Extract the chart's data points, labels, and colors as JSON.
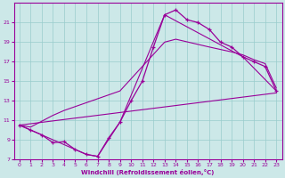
{
  "xlabel": "Windchill (Refroidissement éolien,°C)",
  "background_color": "#cce8e8",
  "grid_color": "#99cccc",
  "line_color": "#990099",
  "xlim": [
    -0.5,
    23.5
  ],
  "ylim": [
    7,
    23
  ],
  "yticks": [
    7,
    9,
    11,
    13,
    15,
    17,
    19,
    21
  ],
  "xticks": [
    0,
    1,
    2,
    3,
    4,
    5,
    6,
    7,
    8,
    9,
    10,
    11,
    12,
    13,
    14,
    15,
    16,
    17,
    18,
    19,
    20,
    21,
    22,
    23
  ],
  "line1_x": [
    0,
    1,
    2,
    3,
    4,
    5,
    6,
    7,
    8,
    9,
    10,
    11,
    12,
    13,
    14,
    15,
    16,
    17,
    18,
    19,
    20,
    21,
    22,
    23
  ],
  "line1_y": [
    10.5,
    10.0,
    9.5,
    8.7,
    8.8,
    8.0,
    7.5,
    7.3,
    9.2,
    10.8,
    13.0,
    15.0,
    18.5,
    21.8,
    22.3,
    21.3,
    21.0,
    20.3,
    19.0,
    18.5,
    17.5,
    17.0,
    16.5,
    14.0
  ],
  "line2_x": [
    0,
    1,
    3,
    4,
    5,
    6,
    7,
    9,
    13,
    14,
    17,
    19,
    20,
    21,
    22,
    23
  ],
  "line2_y": [
    10.5,
    10.3,
    11.5,
    12.0,
    12.4,
    12.8,
    13.2,
    14.0,
    19.0,
    19.3,
    18.5,
    18.0,
    17.7,
    17.2,
    16.8,
    14.3
  ],
  "line3_x": [
    0,
    23
  ],
  "line3_y": [
    10.5,
    13.8
  ],
  "line4_x": [
    0,
    6,
    7,
    9,
    13,
    20,
    23
  ],
  "line4_y": [
    10.5,
    7.5,
    7.3,
    10.8,
    21.8,
    17.5,
    14.0
  ]
}
